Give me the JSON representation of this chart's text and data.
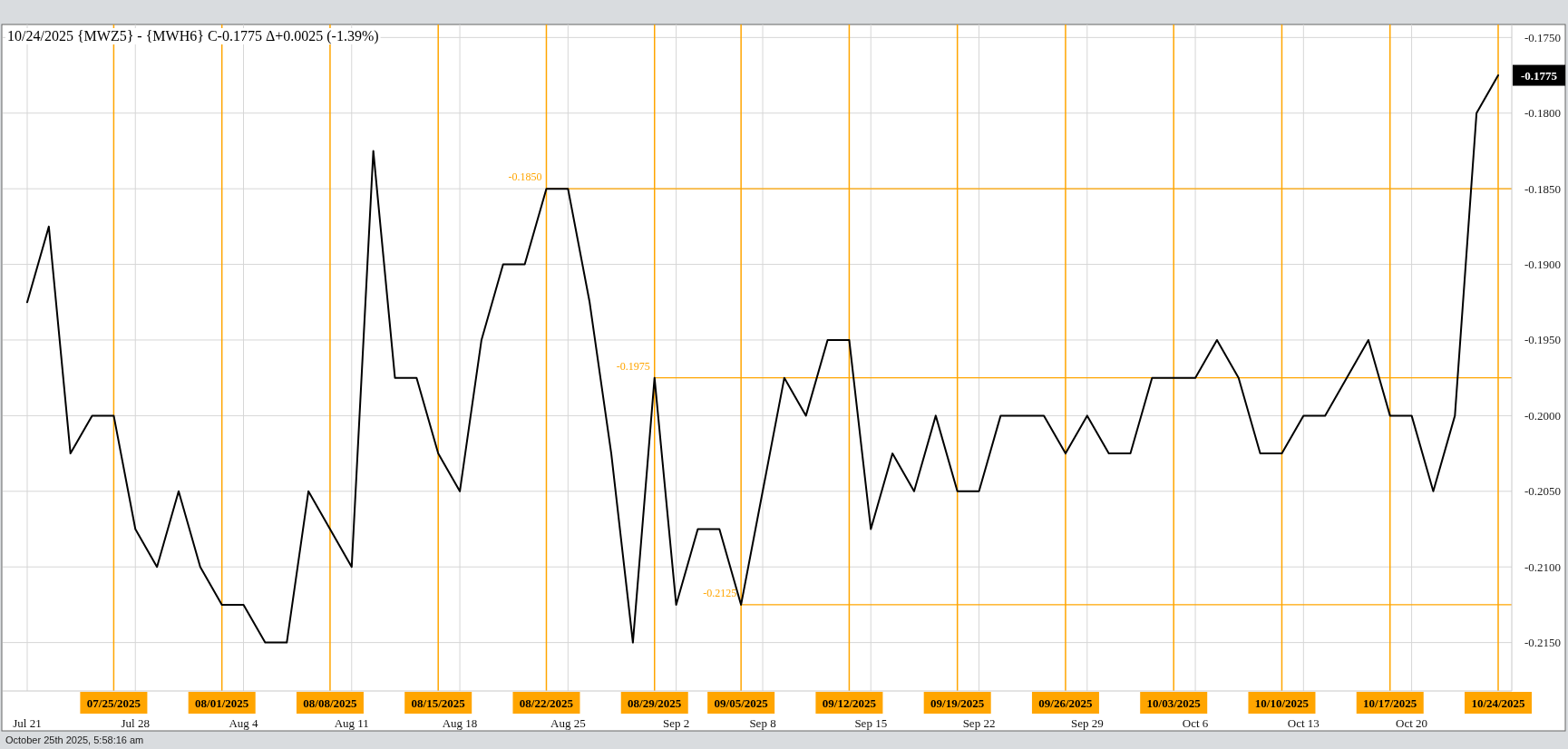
{
  "chart_data": {
    "type": "line",
    "title": "10/24/2025 {MWZ5} - {MWH6} C-0.1775 Δ+0.0025 (-1.39%)",
    "categories": [
      "Jul 21",
      null,
      null,
      null,
      "07/25/2025",
      "Jul 28",
      null,
      null,
      null,
      "08/01/2025",
      "Aug 4",
      null,
      null,
      null,
      "08/08/2025",
      "Aug 11",
      null,
      null,
      null,
      "08/15/2025",
      "Aug 18",
      null,
      null,
      null,
      "08/22/2025",
      "Aug 25",
      null,
      null,
      null,
      "08/29/2025",
      "Sep 2",
      null,
      null,
      "09/05/2025",
      "Sep 8",
      null,
      null,
      null,
      "09/12/2025",
      "Sep 15",
      null,
      null,
      null,
      "09/19/2025",
      "Sep 22",
      null,
      null,
      null,
      "09/26/2025",
      "Sep 29",
      null,
      null,
      null,
      "10/03/2025",
      "Oct 6",
      null,
      null,
      null,
      "10/10/2025",
      "Oct 13",
      null,
      null,
      null,
      "10/17/2025",
      "Oct 20",
      null,
      null,
      null,
      "10/24/2025"
    ],
    "values": [
      -0.1925,
      -0.1875,
      -0.2025,
      -0.2,
      -0.2,
      -0.2075,
      -0.21,
      -0.205,
      -0.21,
      -0.2125,
      -0.2125,
      -0.215,
      -0.215,
      -0.205,
      -0.2075,
      -0.21,
      -0.1825,
      -0.1975,
      -0.1975,
      -0.2025,
      -0.205,
      -0.195,
      -0.19,
      -0.19,
      -0.185,
      -0.185,
      -0.1925,
      -0.2025,
      -0.215,
      -0.1975,
      -0.2125,
      -0.2075,
      -0.2075,
      -0.2125,
      -0.205,
      -0.1975,
      -0.2,
      -0.195,
      -0.195,
      -0.2075,
      -0.2025,
      -0.205,
      -0.2,
      -0.205,
      -0.205,
      -0.2,
      -0.2,
      -0.2,
      -0.2025,
      -0.2,
      -0.2025,
      -0.2025,
      -0.1975,
      -0.1975,
      -0.1975,
      -0.195,
      -0.1975,
      -0.2025,
      -0.2025,
      -0.2,
      -0.2,
      -0.1975,
      -0.195,
      -0.2,
      -0.2,
      -0.205,
      -0.2,
      -0.18,
      -0.1775
    ],
    "color": "#000000",
    "ylim": [
      -0.2182,
      -0.1742
    ],
    "yticks": [
      {
        "value": -0.215,
        "label": "-0.2150"
      },
      {
        "value": -0.21,
        "label": "-0.2100"
      },
      {
        "value": -0.205,
        "label": "-0.2050"
      },
      {
        "value": -0.2,
        "label": "-0.2000"
      },
      {
        "value": -0.195,
        "label": "-0.1950"
      },
      {
        "value": -0.19,
        "label": "-0.1900"
      },
      {
        "value": -0.185,
        "label": "-0.1850"
      },
      {
        "value": -0.18,
        "label": "-0.1800"
      },
      {
        "value": -0.175,
        "label": "-0.1750"
      }
    ],
    "grid": "y",
    "ref_lines": [
      {
        "axis": "x",
        "value": "Jul 21",
        "color": "#d6d6d6"
      },
      {
        "axis": "x",
        "value": "Jul 28",
        "color": "#d6d6d6"
      },
      {
        "axis": "x",
        "value": "Aug 4",
        "color": "#d6d6d6"
      },
      {
        "axis": "x",
        "value": "Aug 11",
        "color": "#d6d6d6"
      },
      {
        "axis": "x",
        "value": "Aug 18",
        "color": "#d6d6d6"
      },
      {
        "axis": "x",
        "value": "Aug 25",
        "color": "#d6d6d6"
      },
      {
        "axis": "x",
        "value": "Sep 2",
        "color": "#d6d6d6"
      },
      {
        "axis": "x",
        "value": "Sep 8",
        "color": "#d6d6d6"
      },
      {
        "axis": "x",
        "value": "Sep 15",
        "color": "#d6d6d6"
      },
      {
        "axis": "x",
        "value": "Sep 22",
        "color": "#d6d6d6"
      },
      {
        "axis": "x",
        "value": "Sep 29",
        "color": "#d6d6d6"
      },
      {
        "axis": "x",
        "value": "Oct 6",
        "color": "#d6d6d6"
      },
      {
        "axis": "x",
        "value": "Oct 13",
        "color": "#d6d6d6"
      },
      {
        "axis": "x",
        "value": "Oct 20",
        "color": "#d6d6d6"
      },
      {
        "axis": "x",
        "value": "07/25/2025",
        "label": "07/25/2025",
        "color": "#ffa500"
      },
      {
        "axis": "x",
        "value": "08/01/2025",
        "label": "08/01/2025",
        "color": "#ffa500"
      },
      {
        "axis": "x",
        "value": "08/08/2025",
        "label": "08/08/2025",
        "color": "#ffa500"
      },
      {
        "axis": "x",
        "value": "08/15/2025",
        "label": "08/15/2025",
        "color": "#ffa500"
      },
      {
        "axis": "x",
        "value": "08/22/2025",
        "label": "08/22/2025",
        "color": "#ffa500"
      },
      {
        "axis": "x",
        "value": "08/29/2025",
        "label": "08/29/2025",
        "color": "#ffa500"
      },
      {
        "axis": "x",
        "value": "09/05/2025",
        "label": "09/05/2025",
        "color": "#ffa500"
      },
      {
        "axis": "x",
        "value": "09/12/2025",
        "label": "09/12/2025",
        "color": "#ffa500"
      },
      {
        "axis": "x",
        "value": "09/19/2025",
        "label": "09/19/2025",
        "color": "#ffa500"
      },
      {
        "axis": "x",
        "value": "09/26/2025",
        "label": "09/26/2025",
        "color": "#ffa500"
      },
      {
        "axis": "x",
        "value": "10/03/2025",
        "label": "10/03/2025",
        "color": "#ffa500"
      },
      {
        "axis": "x",
        "value": "10/10/2025",
        "label": "10/10/2025",
        "color": "#ffa500"
      },
      {
        "axis": "x",
        "value": "10/17/2025",
        "label": "10/17/2025",
        "color": "#ffa500"
      },
      {
        "axis": "x",
        "value": "10/24/2025",
        "label": "10/24/2025",
        "color": "#ffa500"
      },
      {
        "axis": "y",
        "value": -0.185,
        "color": "#ffa500"
      },
      {
        "axis": "y",
        "value": -0.1975,
        "color": "#ffa500"
      },
      {
        "axis": "y",
        "value": -0.2125,
        "color": "#ffa500"
      }
    ],
    "annotations": [
      {
        "text": "-0.1850",
        "x": "08/22/2025",
        "y": -0.185
      },
      {
        "text": "-0.1975",
        "x": "08/29/2025",
        "y": -0.1975
      },
      {
        "text": "-0.2125",
        "x": "09/05/2025",
        "y": -0.2125
      },
      {
        "text": "-0.1775",
        "x": "10/24/2025",
        "y": -0.1775
      },
      "October 25th 2025, 5:58:16 am"
    ]
  }
}
